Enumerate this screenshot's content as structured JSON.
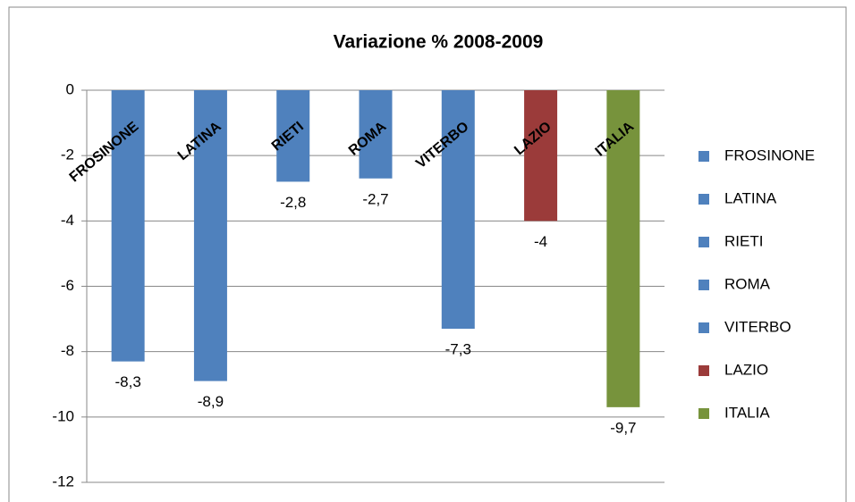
{
  "chart_data": {
    "type": "bar",
    "title": "Variazione % 2008-2009",
    "categories": [
      "FROSINONE",
      "LATINA",
      "RIETI",
      "ROMA",
      "VITERBO",
      "LAZIO",
      "ITALIA"
    ],
    "values": [
      -8.3,
      -8.9,
      -2.8,
      -2.7,
      -7.3,
      -4,
      -9.7
    ],
    "value_labels": [
      "-8,3",
      "-8,9",
      "-2,8",
      "-2,7",
      "-7,3",
      "-4",
      "-9,7"
    ],
    "colors": [
      "#4f81bd",
      "#4f81bd",
      "#4f81bd",
      "#4f81bd",
      "#4f81bd",
      "#9b3b3a",
      "#77933c"
    ],
    "ylim": [
      -12,
      0
    ],
    "yticks": [
      0,
      -2,
      -4,
      -6,
      -8,
      -10,
      -12
    ],
    "grid": true,
    "legend": "right"
  }
}
